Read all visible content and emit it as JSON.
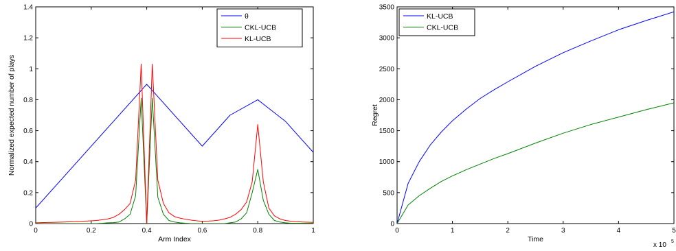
{
  "chart_data": [
    {
      "type": "line",
      "title": "",
      "xlabel": "Arm Index",
      "ylabel": "Normalized expected number of plays",
      "xlim": [
        0,
        1
      ],
      "ylim": [
        0,
        1.4
      ],
      "xticks": [
        0,
        0.2,
        0.4,
        0.6,
        0.8,
        1
      ],
      "xtick_labels": [
        "0",
        "0.2",
        "0.4",
        "0.6",
        "0.8",
        "1"
      ],
      "yticks": [
        0,
        0.2,
        0.4,
        0.6,
        0.8,
        1,
        1.2,
        1.4
      ],
      "ytick_labels": [
        "0",
        "0.2",
        "0.4",
        "0.6",
        "0.8",
        "1",
        "1.2",
        "1.4"
      ],
      "grid": false,
      "legend_position": "top-right",
      "series": [
        {
          "name": "θ",
          "color": "#0000ff",
          "x": [
            0,
            0.4,
            0.6,
            0.7,
            0.8,
            0.9,
            1.0
          ],
          "y": [
            0.1,
            0.9,
            0.5,
            0.7,
            0.8,
            0.66,
            0.46
          ]
        },
        {
          "name": "CKL-UCB",
          "color": "#008000",
          "x": [
            0,
            0.02,
            0.04,
            0.06,
            0.08,
            0.1,
            0.12,
            0.14,
            0.16,
            0.18,
            0.2,
            0.22,
            0.24,
            0.26,
            0.28,
            0.3,
            0.32,
            0.34,
            0.36,
            0.38,
            0.4,
            0.42,
            0.44,
            0.46,
            0.48,
            0.5,
            0.52,
            0.54,
            0.56,
            0.58,
            0.6,
            0.62,
            0.64,
            0.66,
            0.68,
            0.7,
            0.72,
            0.74,
            0.76,
            0.78,
            0.8,
            0.82,
            0.84,
            0.86,
            0.88,
            0.9,
            0.92,
            0.94,
            0.96,
            0.98,
            1.0
          ],
          "y": [
            0.0,
            0.0,
            0.0,
            0.0,
            0.0,
            0.0,
            0.0,
            0.0,
            0.0,
            0.0,
            0.0,
            0.0,
            0.002,
            0.005,
            0.006,
            0.01,
            0.03,
            0.06,
            0.18,
            0.81,
            0.0,
            0.81,
            0.17,
            0.06,
            0.02,
            0.01,
            0.005,
            0.002,
            0.0,
            0.0,
            0.0,
            0.0,
            0.0,
            0.0,
            0.0,
            0.005,
            0.01,
            0.03,
            0.07,
            0.2,
            0.35,
            0.15,
            0.06,
            0.02,
            0.01,
            0.005,
            0.002,
            0.002,
            0.002,
            0.002,
            0.002
          ]
        },
        {
          "name": "KL-UCB",
          "color": "#ff0000",
          "x": [
            0,
            0.02,
            0.04,
            0.06,
            0.08,
            0.1,
            0.12,
            0.14,
            0.16,
            0.18,
            0.2,
            0.22,
            0.24,
            0.26,
            0.28,
            0.3,
            0.32,
            0.34,
            0.36,
            0.38,
            0.4,
            0.42,
            0.44,
            0.46,
            0.48,
            0.5,
            0.52,
            0.54,
            0.56,
            0.58,
            0.6,
            0.62,
            0.64,
            0.66,
            0.68,
            0.7,
            0.72,
            0.74,
            0.76,
            0.78,
            0.8,
            0.82,
            0.84,
            0.86,
            0.88,
            0.9,
            0.92,
            0.94,
            0.96,
            0.98,
            1.0
          ],
          "y": [
            0.005,
            0.006,
            0.007,
            0.008,
            0.009,
            0.01,
            0.011,
            0.012,
            0.014,
            0.016,
            0.018,
            0.02,
            0.025,
            0.03,
            0.04,
            0.06,
            0.09,
            0.13,
            0.28,
            1.03,
            0.0,
            1.03,
            0.28,
            0.13,
            0.07,
            0.045,
            0.035,
            0.028,
            0.022,
            0.018,
            0.015,
            0.016,
            0.018,
            0.022,
            0.03,
            0.04,
            0.06,
            0.09,
            0.14,
            0.27,
            0.64,
            0.27,
            0.1,
            0.05,
            0.03,
            0.02,
            0.015,
            0.012,
            0.01,
            0.009,
            0.008
          ]
        }
      ]
    },
    {
      "type": "line",
      "title": "",
      "xlabel": "Time",
      "ylabel": "Regret",
      "x_multiplier_label": "x 10",
      "x_multiplier_exponent": "5",
      "xlim": [
        0,
        500000
      ],
      "ylim": [
        0,
        3500
      ],
      "xticks": [
        0,
        100000,
        200000,
        300000,
        400000,
        500000
      ],
      "xtick_labels": [
        "0",
        "1",
        "2",
        "3",
        "4",
        "5"
      ],
      "yticks": [
        0,
        500,
        1000,
        1500,
        2000,
        2500,
        3000,
        3500
      ],
      "ytick_labels": [
        "0",
        "500",
        "1000",
        "1500",
        "2000",
        "2500",
        "3000",
        "3500"
      ],
      "grid": false,
      "legend_position": "top-left",
      "series": [
        {
          "name": "KL-UCB",
          "color": "#0000ff",
          "x": [
            0,
            20000,
            40000,
            60000,
            80000,
            100000,
            125000,
            150000,
            175000,
            200000,
            250000,
            300000,
            350000,
            400000,
            450000,
            500000
          ],
          "y": [
            0,
            650,
            1000,
            1270,
            1480,
            1660,
            1850,
            2020,
            2160,
            2290,
            2540,
            2760,
            2950,
            3130,
            3280,
            3420
          ]
        },
        {
          "name": "CKL-UCB",
          "color": "#008000",
          "x": [
            0,
            20000,
            40000,
            60000,
            80000,
            100000,
            125000,
            150000,
            175000,
            200000,
            250000,
            300000,
            350000,
            400000,
            450000,
            500000
          ],
          "y": [
            0,
            300,
            450,
            570,
            680,
            770,
            870,
            960,
            1050,
            1130,
            1300,
            1460,
            1600,
            1720,
            1840,
            1950
          ]
        }
      ]
    }
  ]
}
